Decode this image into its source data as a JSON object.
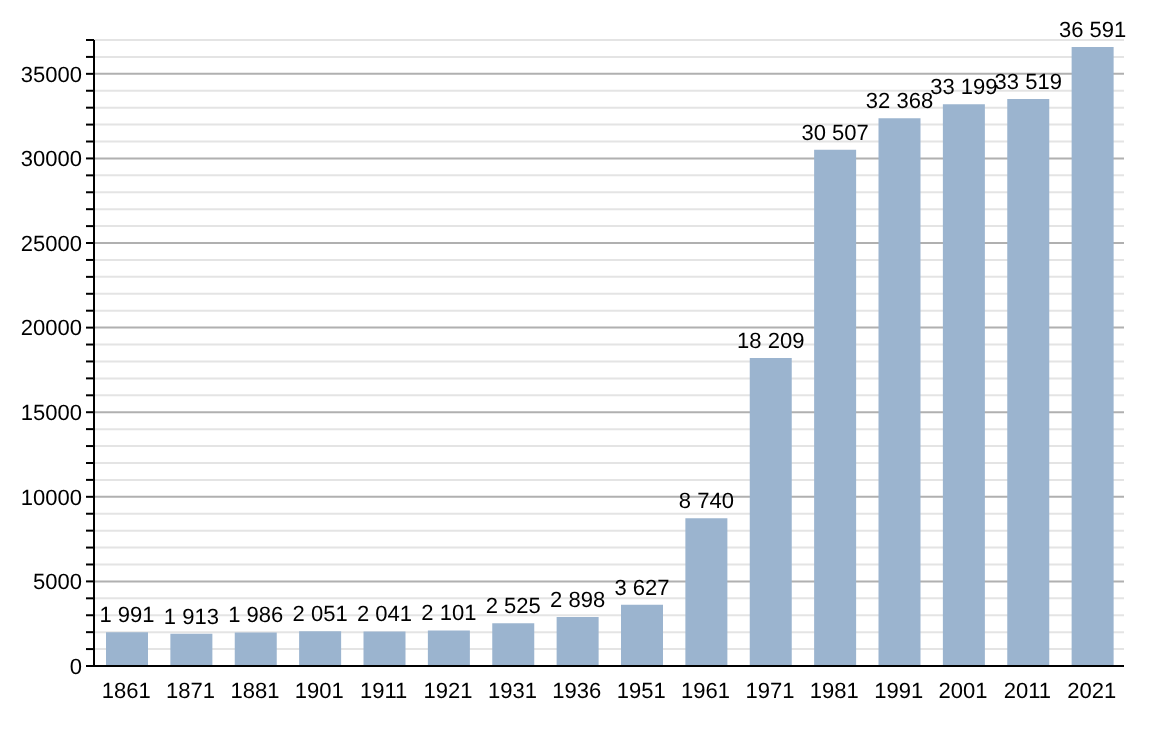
{
  "chart_data": {
    "type": "bar",
    "categories": [
      "1861",
      "1871",
      "1881",
      "1901",
      "1911",
      "1921",
      "1931",
      "1936",
      "1951",
      "1961",
      "1971",
      "1981",
      "1991",
      "2001",
      "2011",
      "2021"
    ],
    "values": [
      1991,
      1913,
      1986,
      2051,
      2041,
      2101,
      2525,
      2898,
      3627,
      8740,
      18209,
      30507,
      32368,
      33199,
      33519,
      36591
    ],
    "value_labels": [
      "1 991",
      "1 913",
      "1 986",
      "2 051",
      "2 041",
      "2 101",
      "2 525",
      "2 898",
      "3 627",
      "8 740",
      "18 209",
      "30 507",
      "32 368",
      "33 199",
      "33 519",
      "36 591"
    ],
    "color": "#9bb4cf",
    "ylim": [
      0,
      37000
    ],
    "yticks": [
      0,
      {
        "value": 1000,
        "label": null
      },
      {
        "value": 2000,
        "label": null
      },
      {
        "value": 3000,
        "label": null
      },
      {
        "value": 4000,
        "label": null
      },
      5000,
      {
        "value": 6000,
        "label": null
      },
      {
        "value": 7000,
        "label": null
      },
      {
        "value": 8000,
        "label": null
      },
      {
        "value": 9000,
        "label": null
      },
      10000,
      {
        "value": 11000,
        "label": null
      },
      {
        "value": 12000,
        "label": null
      },
      {
        "value": 13000,
        "label": null
      },
      {
        "value": 14000,
        "label": null
      },
      15000,
      {
        "value": 16000,
        "label": null
      },
      {
        "value": 17000,
        "label": null
      },
      {
        "value": 18000,
        "label": null
      },
      {
        "value": 19000,
        "label": null
      },
      20000,
      {
        "value": 21000,
        "label": null
      },
      {
        "value": 22000,
        "label": null
      },
      {
        "value": 23000,
        "label": null
      },
      {
        "value": 24000,
        "label": null
      },
      25000,
      {
        "value": 26000,
        "label": null
      },
      {
        "value": 27000,
        "label": null
      },
      {
        "value": 28000,
        "label": null
      },
      {
        "value": 29000,
        "label": null
      },
      30000,
      {
        "value": 31000,
        "label": null
      },
      {
        "value": 32000,
        "label": null
      },
      {
        "value": 33000,
        "label": null
      },
      {
        "value": 34000,
        "label": null
      },
      35000,
      {
        "value": 36000,
        "label": null
      },
      {
        "value": 37000,
        "label": null
      }
    ],
    "grid": true
  }
}
